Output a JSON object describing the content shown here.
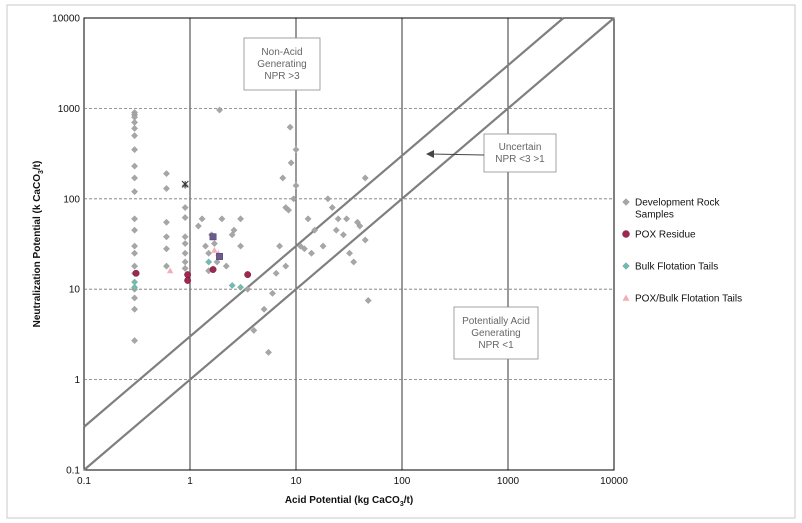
{
  "chart_data": {
    "type": "scatter",
    "x_scale": "log",
    "y_scale": "log",
    "xlim": [
      0.1,
      10000
    ],
    "ylim": [
      0.1,
      10000
    ],
    "grid": true,
    "legend_position": "right",
    "xlabel_parts": [
      "Acid Potential (kg CaCO",
      "3",
      "/t)"
    ],
    "ylabel_parts": [
      "Neutralization Potential (k CaCO",
      "3",
      "/t)"
    ],
    "x_tick_labels": [
      "0.1",
      "1",
      "10",
      "100",
      "1000",
      "10000"
    ],
    "y_tick_labels": [
      "0.1",
      "1",
      "10",
      "100",
      "1000",
      "10000"
    ],
    "reference_lines": [
      {
        "label": "NPR = 3",
        "ratio": 3
      },
      {
        "label": "NPR = 1",
        "ratio": 1
      }
    ],
    "annotations": [
      {
        "id": "non-acid",
        "lines": [
          "Non-Acid",
          "Generating",
          "NPR >3"
        ]
      },
      {
        "id": "uncertain",
        "lines": [
          "Uncertain",
          "NPR <3 >1"
        ]
      },
      {
        "id": "acid",
        "lines": [
          "Potentially Acid",
          "Generating",
          "NPR <1"
        ]
      }
    ],
    "series": [
      {
        "name_lines": [
          "Development Rock",
          "Samples"
        ],
        "marker": "diamond",
        "color": "#a6a6a6",
        "points": [
          [
            0.3,
            900
          ],
          [
            0.3,
            850
          ],
          [
            0.3,
            800
          ],
          [
            0.3,
            700
          ],
          [
            0.3,
            600
          ],
          [
            0.3,
            500
          ],
          [
            0.3,
            350
          ],
          [
            0.3,
            230
          ],
          [
            0.3,
            170
          ],
          [
            0.3,
            120
          ],
          [
            0.3,
            60
          ],
          [
            0.3,
            45
          ],
          [
            0.3,
            30
          ],
          [
            0.3,
            25
          ],
          [
            0.3,
            18
          ],
          [
            0.3,
            15
          ],
          [
            0.3,
            10
          ],
          [
            0.3,
            8
          ],
          [
            0.3,
            6
          ],
          [
            0.3,
            2.7
          ],
          [
            0.6,
            190
          ],
          [
            0.6,
            130
          ],
          [
            0.6,
            55
          ],
          [
            0.6,
            38
          ],
          [
            0.6,
            28
          ],
          [
            0.6,
            18
          ],
          [
            0.9,
            140
          ],
          [
            0.9,
            80
          ],
          [
            0.9,
            62
          ],
          [
            0.9,
            38
          ],
          [
            0.9,
            32
          ],
          [
            0.9,
            25
          ],
          [
            0.9,
            20
          ],
          [
            0.9,
            17
          ],
          [
            1.2,
            50
          ],
          [
            1.3,
            60
          ],
          [
            1.4,
            30
          ],
          [
            1.5,
            25
          ],
          [
            1.5,
            16
          ],
          [
            1.6,
            40
          ],
          [
            1.7,
            32
          ],
          [
            1.8,
            20
          ],
          [
            1.9,
            960
          ],
          [
            2,
            60
          ],
          [
            2.2,
            18
          ],
          [
            2.5,
            40
          ],
          [
            2.6,
            45
          ],
          [
            3,
            60
          ],
          [
            3,
            30
          ],
          [
            3.5,
            10
          ],
          [
            4,
            3.5
          ],
          [
            5.5,
            2.0
          ],
          [
            6,
            9
          ],
          [
            7,
            30
          ],
          [
            7.5,
            170
          ],
          [
            8,
            80
          ],
          [
            8.5,
            75
          ],
          [
            8.8,
            620
          ],
          [
            9,
            250
          ],
          [
            9.5,
            100
          ],
          [
            10,
            350
          ],
          [
            10,
            140
          ],
          [
            11,
            30
          ],
          [
            12,
            28
          ],
          [
            13,
            60
          ],
          [
            15,
            45
          ],
          [
            20,
            100
          ],
          [
            22,
            80
          ],
          [
            25,
            60
          ],
          [
            28,
            40
          ],
          [
            30,
            60
          ],
          [
            32,
            25
          ],
          [
            35,
            20
          ],
          [
            40,
            50
          ],
          [
            45,
            35
          ],
          [
            45,
            170
          ],
          [
            48,
            7.5
          ],
          [
            18,
            30
          ],
          [
            24,
            45
          ],
          [
            6.5,
            15
          ],
          [
            5,
            6
          ],
          [
            8,
            18
          ],
          [
            14,
            25
          ],
          [
            38,
            55
          ]
        ]
      },
      {
        "name_lines": [
          "POX Residue"
        ],
        "marker": "circle",
        "color": "#a0284e",
        "points": [
          [
            0.31,
            15
          ],
          [
            0.95,
            14.5
          ],
          [
            0.95,
            12.5
          ],
          [
            1.65,
            16.5
          ],
          [
            3.5,
            14.5
          ]
        ]
      },
      {
        "name_lines": [
          "Bulk Flotation Tails"
        ],
        "marker": "diamond",
        "color": "#6dbdb0",
        "points": [
          [
            0.3,
            12
          ],
          [
            0.3,
            10.5
          ],
          [
            1.5,
            20
          ],
          [
            2.5,
            11
          ],
          [
            3,
            10.5
          ]
        ]
      },
      {
        "name_lines": [
          "POX/Bulk Flotation Tails"
        ],
        "marker": "triangle",
        "color": "#f2aeb4",
        "points": [
          [
            0.65,
            16
          ],
          [
            1.7,
            27
          ],
          [
            1.85,
            25
          ]
        ]
      }
    ],
    "extra_markers": [
      {
        "marker": "square",
        "color": "#6b5b8e",
        "points": [
          [
            1.65,
            38
          ],
          [
            1.9,
            23
          ]
        ]
      },
      {
        "marker": "star",
        "color": "#333333",
        "points": [
          [
            0.9,
            145
          ]
        ]
      }
    ]
  }
}
